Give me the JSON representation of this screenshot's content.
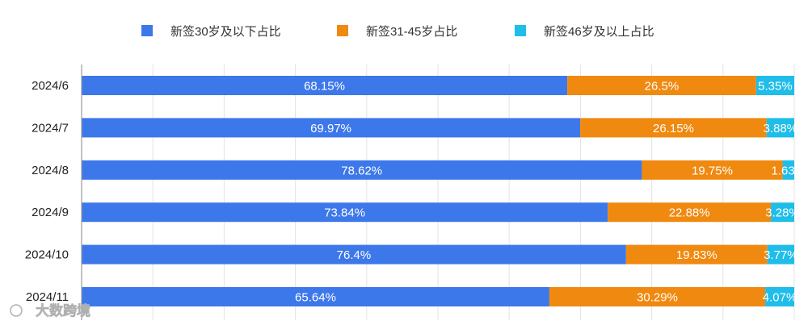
{
  "chart_data": {
    "type": "bar",
    "orientation": "horizontal",
    "stacked": true,
    "categories": [
      "2024/6",
      "2024/7",
      "2024/8",
      "2024/9",
      "2024/10",
      "2024/11"
    ],
    "series": [
      {
        "name": "新签30岁及以下占比",
        "color": "#3d78eb",
        "values": [
          68.15,
          69.97,
          78.62,
          73.84,
          76.4,
          65.64
        ]
      },
      {
        "name": "新签31-45岁占比",
        "color": "#f0890f",
        "values": [
          26.5,
          26.15,
          19.75,
          22.88,
          19.83,
          30.29
        ]
      },
      {
        "name": "新签46岁及以上占比",
        "color": "#1fbde9",
        "values": [
          5.35,
          3.88,
          1.63,
          3.28,
          3.77,
          4.07
        ]
      }
    ],
    "value_suffix": "%",
    "xlim": [
      0,
      100
    ],
    "grid": true,
    "legend_position": "top"
  },
  "watermark": {
    "text": "大数跨境"
  }
}
